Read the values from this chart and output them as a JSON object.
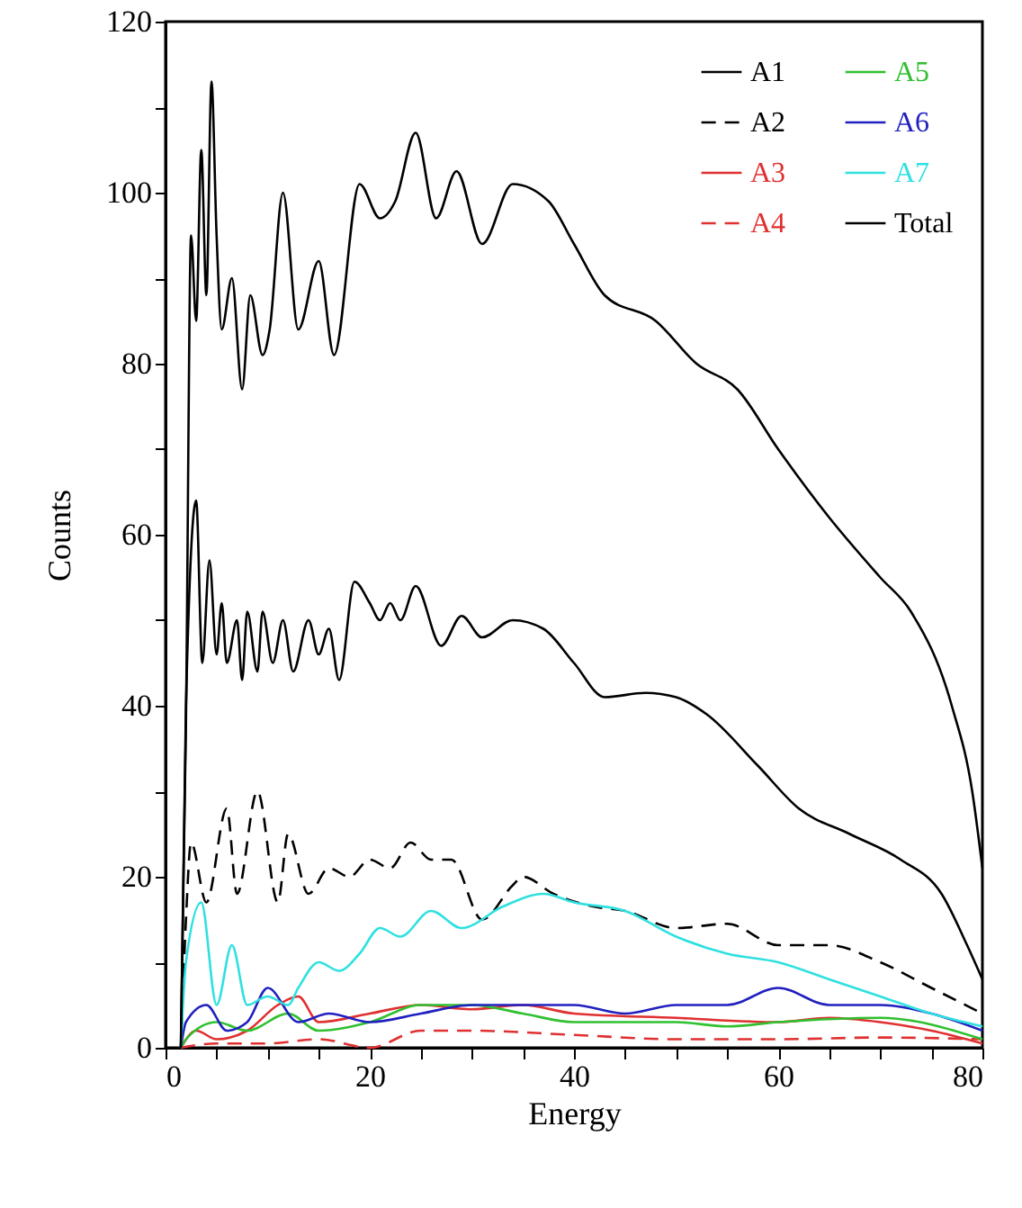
{
  "chart_data": {
    "type": "line",
    "xlabel": "Energy",
    "ylabel": "Counts",
    "xlim": [
      0,
      80
    ],
    "ylim": [
      0,
      120
    ],
    "xticks": [
      0,
      {
        "value": 5,
        "label": null
      },
      {
        "value": 10,
        "label": null
      },
      {
        "value": 15,
        "label": null
      },
      20,
      {
        "value": 25,
        "label": null
      },
      {
        "value": 30,
        "label": null
      },
      {
        "value": 35,
        "label": null
      },
      40,
      {
        "value": 45,
        "label": null
      },
      {
        "value": 50,
        "label": null
      },
      {
        "value": 55,
        "label": null
      },
      60,
      {
        "value": 65,
        "label": null
      },
      {
        "value": 70,
        "label": null
      },
      {
        "value": 75,
        "label": null
      },
      80
    ],
    "yticks": [
      0,
      {
        "value": 10,
        "label": null
      },
      20,
      {
        "value": 30,
        "label": null
      },
      40,
      {
        "value": 50,
        "label": null
      },
      60,
      {
        "value": 70,
        "label": null
      },
      80,
      {
        "value": 90,
        "label": null
      },
      100,
      {
        "value": 110,
        "label": null
      },
      120
    ],
    "grid": false,
    "legend": "top right",
    "series": [
      {
        "name": "A1",
        "color": "#000000",
        "line_style": "solid",
        "x": [
          1.5,
          2,
          3,
          3.6,
          4.3,
          5,
          5.5,
          6,
          7,
          7.5,
          8,
          9,
          9.5,
          10.5,
          11.5,
          12.5,
          14,
          15,
          16,
          17,
          18.5,
          20,
          21,
          22,
          23,
          24.5,
          27,
          29,
          31,
          34,
          37,
          40,
          43,
          47,
          50,
          53,
          58,
          62,
          67,
          72,
          76,
          78.5,
          80
        ],
        "values": [
          0,
          40,
          64,
          45,
          57,
          46,
          52,
          45,
          50,
          43,
          51,
          44,
          51,
          45,
          50,
          44,
          50,
          46,
          49,
          43,
          54.5,
          52,
          50,
          52,
          50,
          54,
          47,
          50.5,
          48,
          50,
          49,
          45,
          41,
          41.5,
          41,
          39,
          33,
          28,
          25,
          22,
          18,
          12,
          8
        ]
      },
      {
        "name": "A2",
        "color": "#000000",
        "line_style": "dashed",
        "x": [
          1.5,
          2,
          2.5,
          4,
          6,
          7,
          9,
          11,
          12,
          14,
          16,
          18,
          20,
          22,
          24,
          26,
          28,
          31,
          34,
          35,
          38,
          42,
          45,
          50,
          55,
          60,
          65,
          70,
          75,
          80
        ],
        "values": [
          0,
          15,
          24,
          17,
          28,
          18,
          30,
          17,
          25,
          18,
          21,
          20,
          22,
          21,
          24,
          22,
          22,
          15,
          19,
          20,
          18,
          16.5,
          16,
          14,
          14.5,
          12,
          12,
          10,
          7,
          4
        ]
      },
      {
        "name": "A3",
        "color": "#e03030",
        "line_style": "solid",
        "x": [
          1.5,
          3,
          5,
          8,
          11,
          13,
          15,
          20,
          25,
          30,
          35,
          40,
          50,
          60,
          65,
          70,
          75,
          80
        ],
        "values": [
          0,
          2,
          1,
          2,
          5,
          6,
          3,
          4,
          5,
          4.5,
          5,
          4,
          3.5,
          3,
          3.5,
          3,
          2,
          0.5
        ]
      },
      {
        "name": "A4",
        "color": "#e03030",
        "line_style": "dashed",
        "x": [
          1.5,
          5,
          10,
          15,
          20,
          25,
          30,
          40,
          50,
          60,
          70,
          80
        ],
        "values": [
          0,
          0.5,
          0.5,
          1,
          0,
          2,
          2,
          1.5,
          1,
          1,
          1.2,
          1
        ]
      },
      {
        "name": "A5",
        "color": "#30c030",
        "line_style": "solid",
        "x": [
          1.5,
          2,
          5,
          8,
          12,
          15,
          20,
          25,
          30,
          35,
          40,
          50,
          55,
          60,
          70,
          80
        ],
        "values": [
          0,
          1,
          3,
          2,
          4,
          2,
          3,
          5,
          5,
          4,
          3,
          3,
          2.5,
          3,
          3.5,
          1
        ]
      },
      {
        "name": "A6",
        "color": "#2020c0",
        "line_style": "solid",
        "x": [
          1.5,
          2,
          4,
          6,
          8,
          10,
          13,
          16,
          20,
          25,
          30,
          35,
          40,
          45,
          50,
          55,
          60,
          65,
          70,
          75,
          80
        ],
        "values": [
          0,
          3,
          5,
          2,
          3,
          7,
          3,
          4,
          3,
          4,
          5,
          5,
          5,
          4,
          5,
          5,
          7,
          5,
          5,
          4,
          2
        ]
      },
      {
        "name": "A7",
        "color": "#30e0e0",
        "line_style": "solid",
        "x": [
          1.5,
          2,
          3.5,
          5,
          6.5,
          8,
          10,
          12,
          13,
          15,
          17,
          19,
          21,
          23,
          26,
          29,
          33,
          37,
          40,
          45,
          50,
          55,
          60,
          65,
          70,
          75,
          80
        ],
        "values": [
          0,
          10,
          17,
          5,
          12,
          5,
          6,
          5,
          7,
          10,
          9,
          11,
          14,
          13,
          16,
          14,
          16.5,
          18,
          17,
          16,
          13,
          11,
          10,
          8,
          6,
          4,
          2.5
        ]
      },
      {
        "name": "Total",
        "color": "#000000",
        "line_style": "solid",
        "x": [
          1.5,
          2,
          2.5,
          3,
          3.5,
          4,
          4.5,
          5,
          5.5,
          6.5,
          7.5,
          8.3,
          9.5,
          10.2,
          11.5,
          13,
          15,
          16.5,
          19,
          21,
          22.5,
          24.5,
          26.5,
          28.5,
          31,
          34,
          37.5,
          40,
          43,
          48,
          52,
          56,
          60,
          65,
          70,
          73,
          77,
          79,
          80
        ],
        "values": [
          0,
          38,
          95,
          85,
          105,
          88,
          113,
          95,
          84,
          90,
          77,
          88,
          81,
          84,
          100,
          84,
          92,
          81,
          101,
          97,
          99,
          107,
          97,
          102.5,
          94,
          101,
          99,
          94,
          88,
          85,
          80,
          77,
          70,
          62,
          55,
          51,
          40,
          30,
          21
        ]
      }
    ]
  }
}
